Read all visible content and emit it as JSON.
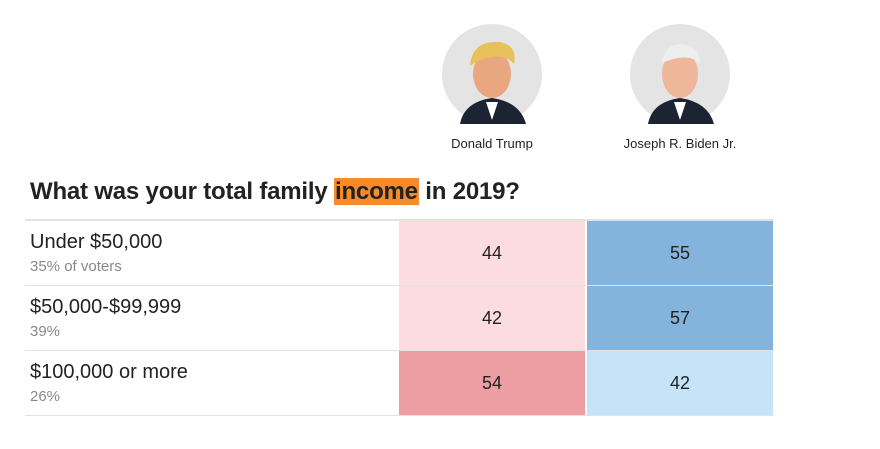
{
  "candidates": [
    "Donald Trump",
    "Joseph R. Biden Jr."
  ],
  "question": {
    "before": "What was your total family",
    "highlight": "income",
    "after": "in 2019?",
    "highlight_color": "#f68b2c"
  },
  "table": {
    "rows": [
      {
        "label": "Under $50,000",
        "share": "35% of voters",
        "values": [
          44,
          55
        ],
        "colors": [
          "#fddcdf",
          "#84b4dc"
        ]
      },
      {
        "label": "$50,000-$99,999",
        "share": "39%",
        "values": [
          42,
          57
        ],
        "colors": [
          "#fddcdf",
          "#84b4dc"
        ]
      },
      {
        "label": "$100,000 or more",
        "share": "26%",
        "values": [
          54,
          42
        ],
        "colors": [
          "#ec9ea2",
          "#c6e4f8"
        ]
      }
    ]
  }
}
